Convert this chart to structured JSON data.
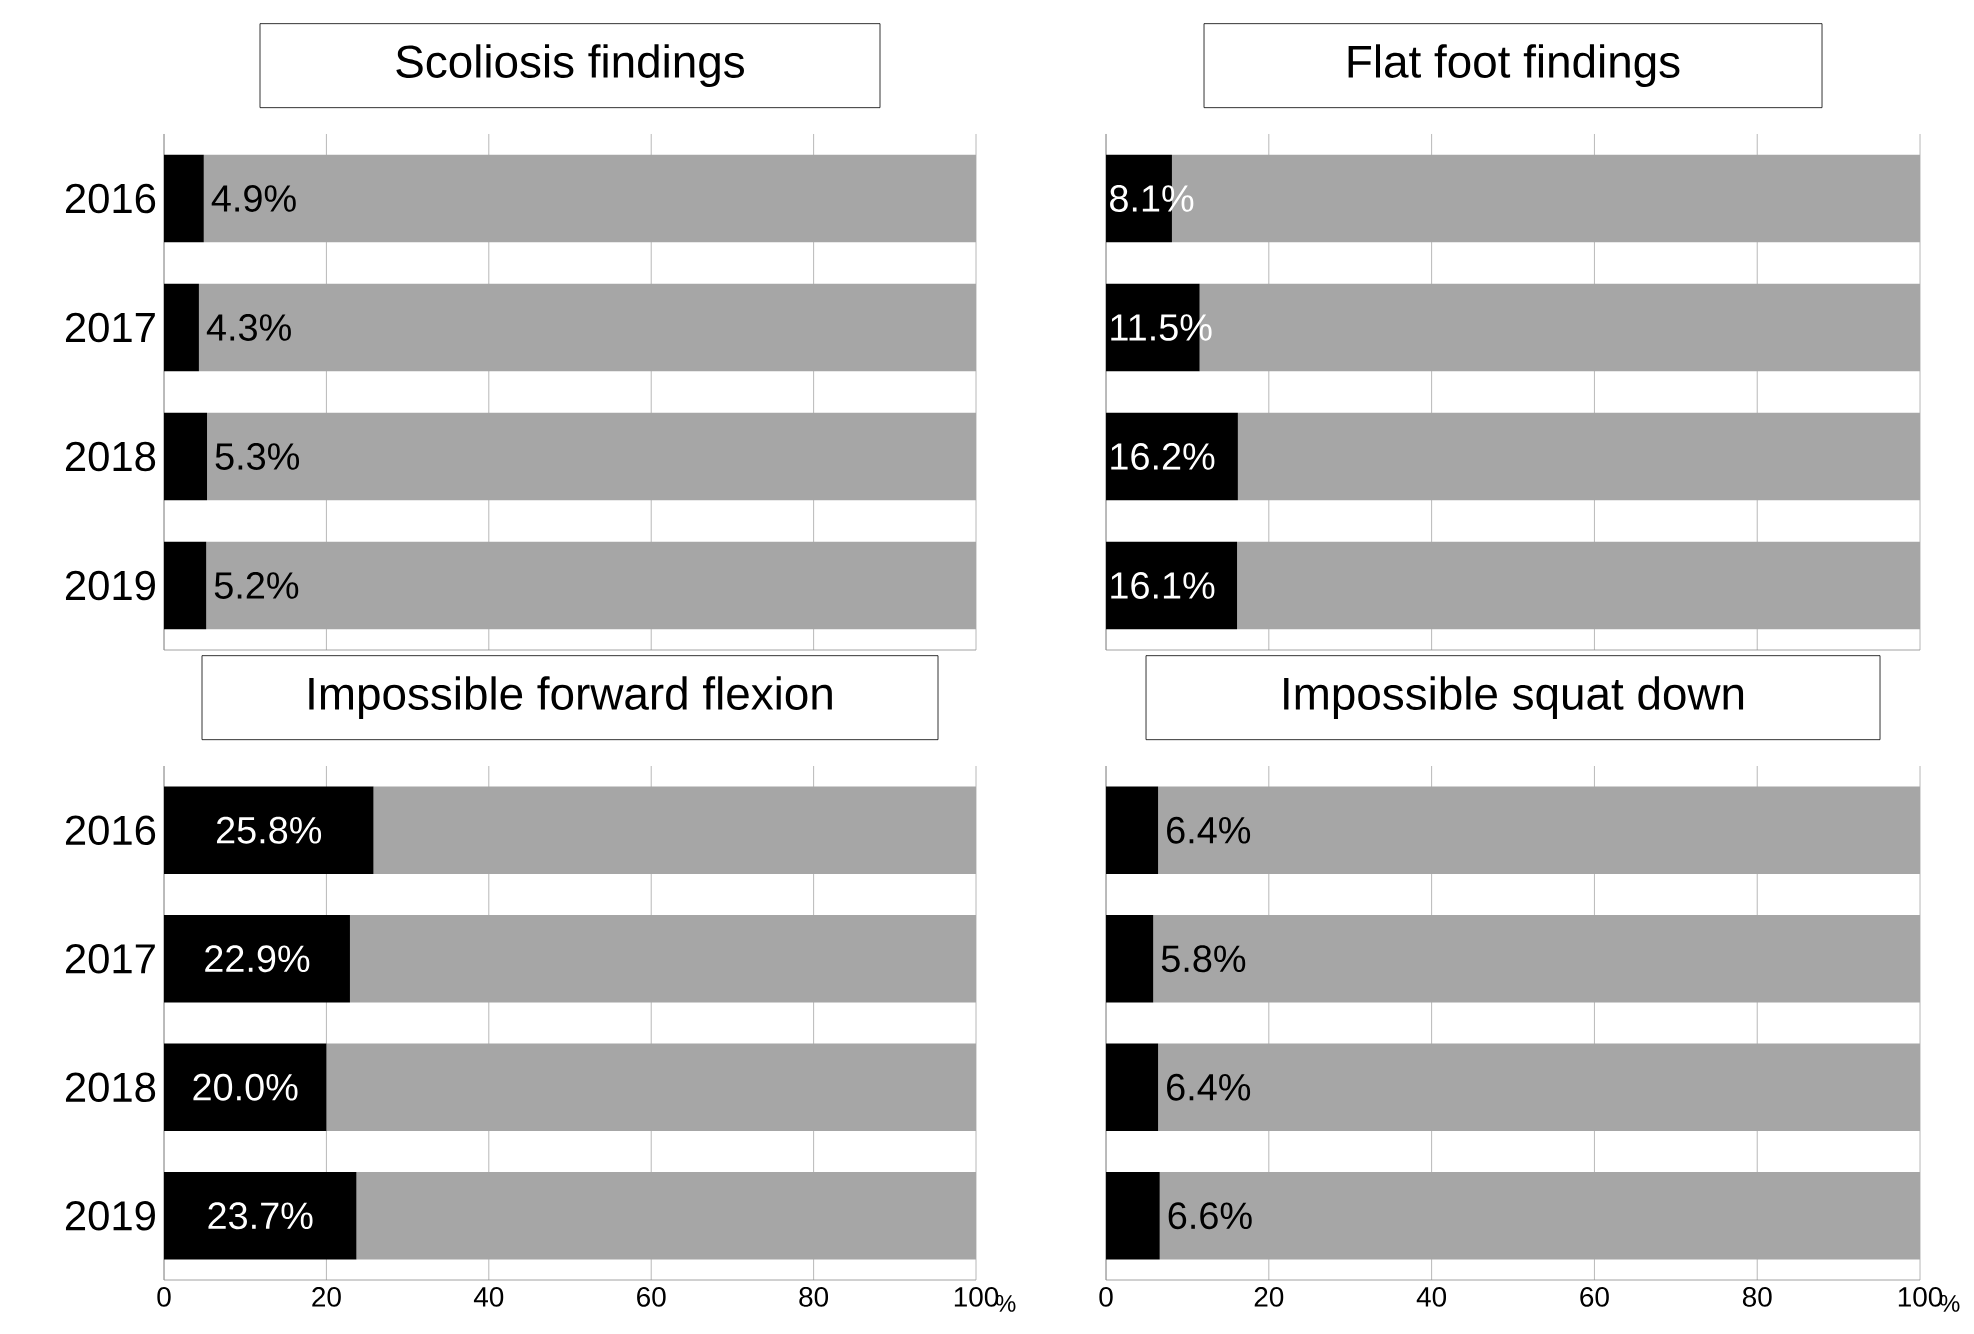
{
  "chart_data": [
    {
      "type": "bar",
      "orientation": "horizontal",
      "stacked": true,
      "title": "Scoliosis findings",
      "categories": [
        "2016",
        "2017",
        "2018",
        "2019"
      ],
      "series": [
        {
          "color": "#000000",
          "values": [
            4.9,
            4.3,
            5.3,
            5.2
          ],
          "value_labels": [
            "4.9%",
            "4.3%",
            "5.3%",
            "5.2%"
          ]
        },
        {
          "color": "#a6a6a6",
          "values": [
            95.1,
            95.7,
            94.7,
            94.8
          ]
        }
      ],
      "xlim": [
        0,
        100
      ],
      "xticks": [
        0,
        20,
        40,
        60,
        80,
        100
      ],
      "grid": "x",
      "tick_labels": "y"
    },
    {
      "type": "bar",
      "orientation": "horizontal",
      "stacked": true,
      "title": "Flat foot findings",
      "categories": [
        "2016",
        "2017",
        "2018",
        "2019"
      ],
      "series": [
        {
          "color": "#000000",
          "values": [
            8.1,
            11.5,
            16.2,
            16.1
          ],
          "value_labels": [
            "8.1%",
            "11.5%",
            "16.2%",
            "16.1%"
          ]
        },
        {
          "color": "#a6a6a6",
          "values": [
            91.9,
            88.5,
            83.8,
            83.9
          ]
        }
      ],
      "xlim": [
        0,
        100
      ],
      "xticks": [
        0,
        20,
        40,
        60,
        80,
        100
      ],
      "grid": "x",
      "tick_labels": false
    },
    {
      "type": "bar",
      "orientation": "horizontal",
      "stacked": true,
      "title": "Impossible forward flexion",
      "xlabel": "%",
      "categories": [
        "2016",
        "2017",
        "2018",
        "2019"
      ],
      "series": [
        {
          "color": "#000000",
          "values": [
            25.8,
            22.9,
            20.0,
            23.7
          ],
          "value_labels": [
            "25.8%",
            "22.9%",
            "20.0%",
            "23.7%"
          ]
        },
        {
          "color": "#a6a6a6",
          "values": [
            74.2,
            77.1,
            80.0,
            76.3
          ]
        }
      ],
      "xlim": [
        0,
        100
      ],
      "xticks": [
        0,
        20,
        40,
        60,
        80,
        100
      ],
      "grid": "x"
    },
    {
      "type": "bar",
      "orientation": "horizontal",
      "stacked": true,
      "title": "Impossible squat down",
      "xlabel": "%",
      "categories": [
        "2016",
        "2017",
        "2018",
        "2019"
      ],
      "series": [
        {
          "color": "#000000",
          "values": [
            6.4,
            5.8,
            6.4,
            6.6
          ],
          "value_labels": [
            "6.4%",
            "5.8%",
            "6.4%",
            "6.6%"
          ]
        },
        {
          "color": "#a6a6a6",
          "values": [
            93.6,
            94.2,
            93.6,
            93.4
          ]
        }
      ],
      "xlim": [
        0,
        100
      ],
      "xticks": [
        0,
        20,
        40,
        60,
        80,
        100
      ],
      "grid": "x",
      "tick_labels": "x"
    }
  ]
}
